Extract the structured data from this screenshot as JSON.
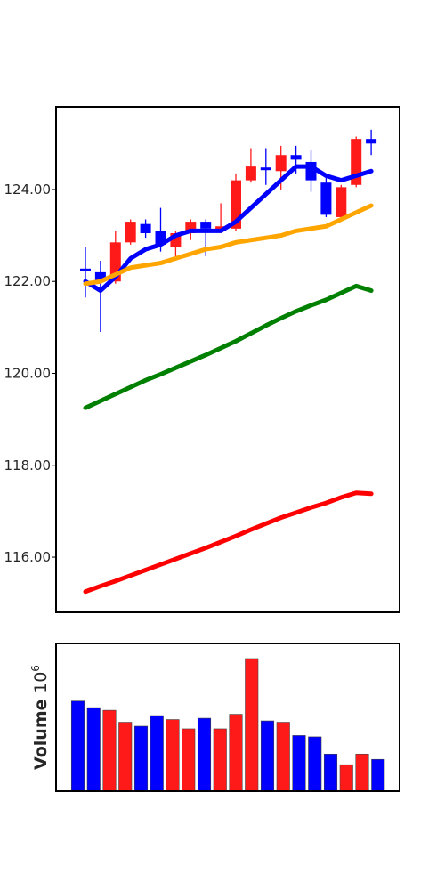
{
  "chart_data": [
    {
      "type": "candlestick",
      "yticks": [
        116,
        118,
        120,
        122,
        124
      ],
      "ytick_labels": [
        "116.00",
        "118.00",
        "120.00",
        "122.00",
        "124.00"
      ],
      "ylim": [
        114.8,
        125.8
      ],
      "candles": [
        {
          "open": 122.25,
          "high": 122.75,
          "low": 121.65,
          "close": 122.25,
          "color": "blue"
        },
        {
          "open": 122.2,
          "high": 122.45,
          "low": 120.9,
          "close": 122.0,
          "color": "blue"
        },
        {
          "open": 122.0,
          "high": 123.1,
          "low": 121.95,
          "close": 122.85,
          "color": "red"
        },
        {
          "open": 122.85,
          "high": 123.35,
          "low": 122.8,
          "close": 123.3,
          "color": "red"
        },
        {
          "open": 123.25,
          "high": 123.35,
          "low": 122.95,
          "close": 123.05,
          "color": "blue"
        },
        {
          "open": 123.1,
          "high": 123.6,
          "low": 122.65,
          "close": 122.8,
          "color": "blue"
        },
        {
          "open": 122.75,
          "high": 123.1,
          "low": 122.45,
          "close": 123.05,
          "color": "red"
        },
        {
          "open": 123.05,
          "high": 123.35,
          "low": 122.9,
          "close": 123.3,
          "color": "red"
        },
        {
          "open": 123.3,
          "high": 123.35,
          "low": 122.55,
          "close": 123.15,
          "color": "blue"
        },
        {
          "open": 123.1,
          "high": 123.7,
          "low": 123.05,
          "close": 123.2,
          "color": "red"
        },
        {
          "open": 123.15,
          "high": 124.35,
          "low": 123.1,
          "close": 124.2,
          "color": "red"
        },
        {
          "open": 124.2,
          "high": 124.9,
          "low": 124.15,
          "close": 124.5,
          "color": "red"
        },
        {
          "open": 124.45,
          "high": 124.9,
          "low": 124.1,
          "close": 124.4,
          "color": "blue"
        },
        {
          "open": 124.4,
          "high": 124.95,
          "low": 124.0,
          "close": 124.75,
          "color": "red"
        },
        {
          "open": 124.75,
          "high": 124.95,
          "low": 124.35,
          "close": 124.65,
          "color": "blue"
        },
        {
          "open": 124.6,
          "high": 124.85,
          "low": 123.95,
          "close": 124.2,
          "color": "blue"
        },
        {
          "open": 124.15,
          "high": 124.25,
          "low": 123.4,
          "close": 123.45,
          "color": "blue"
        },
        {
          "open": 123.4,
          "high": 124.1,
          "low": 123.35,
          "close": 124.05,
          "color": "red"
        },
        {
          "open": 124.1,
          "high": 125.15,
          "low": 124.05,
          "close": 125.1,
          "color": "red"
        },
        {
          "open": 125.1,
          "high": 125.3,
          "low": 124.75,
          "close": 125.0,
          "color": "blue"
        }
      ],
      "series": [
        {
          "color": "#0000ff",
          "values": [
            122.0,
            121.8,
            122.1,
            122.5,
            122.7,
            122.8,
            123.0,
            123.1,
            123.1,
            123.1,
            123.3,
            123.6,
            123.9,
            124.2,
            124.5,
            124.5,
            124.3,
            124.2,
            124.3,
            124.4
          ]
        },
        {
          "color": "#ffa500",
          "values": [
            121.95,
            122.0,
            122.15,
            122.3,
            122.35,
            122.4,
            122.5,
            122.6,
            122.7,
            122.75,
            122.85,
            122.9,
            122.95,
            123.0,
            123.1,
            123.15,
            123.2,
            123.35,
            123.5,
            123.65
          ]
        },
        {
          "color": "#008000",
          "values": [
            119.25,
            119.4,
            119.55,
            119.7,
            119.85,
            119.98,
            120.12,
            120.26,
            120.4,
            120.55,
            120.7,
            120.87,
            121.04,
            121.2,
            121.35,
            121.48,
            121.6,
            121.75,
            121.9,
            121.8
          ]
        },
        {
          "color": "#ff0000",
          "values": [
            115.25,
            115.37,
            115.48,
            115.6,
            115.72,
            115.84,
            115.96,
            116.08,
            116.2,
            116.33,
            116.46,
            116.6,
            116.73,
            116.86,
            116.97,
            117.08,
            117.18,
            117.3,
            117.4,
            117.38
          ]
        }
      ]
    },
    {
      "type": "bar",
      "ylabel": "Volume $10^6$",
      "ylabel_text": "Volume",
      "ylabel_exp": "6",
      "ylabel_base": "10",
      "ylim": [
        0,
        1.0
      ],
      "values": [
        0.68,
        0.63,
        0.61,
        0.52,
        0.49,
        0.57,
        0.54,
        0.47,
        0.55,
        0.47,
        0.58,
        1.0,
        0.53,
        0.52,
        0.42,
        0.41,
        0.28,
        0.2,
        0.28,
        0.24
      ],
      "colors": [
        "blue",
        "blue",
        "red",
        "red",
        "blue",
        "blue",
        "red",
        "red",
        "blue",
        "red",
        "red",
        "red",
        "blue",
        "red",
        "blue",
        "blue",
        "blue",
        "red",
        "red",
        "blue"
      ]
    }
  ]
}
